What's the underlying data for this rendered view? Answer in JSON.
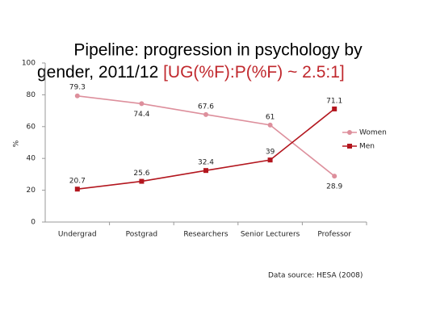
{
  "chart_data": {
    "type": "line",
    "title": "Pipeline: progression in psychology by",
    "title_line2": "gender, 2011/12 ",
    "title_highlight": "[UG(%F):P(%F) ~ 2.5:1]",
    "y_label": "%",
    "categories": [
      "Undergrad",
      "Postgrad",
      "Researchers",
      "Senior Lecturers",
      "Professor"
    ],
    "series": [
      {
        "name": "Women",
        "color": "#dd8f9c",
        "values": [
          79.3,
          74.4,
          67.6,
          61,
          28.9
        ]
      },
      {
        "name": "Men",
        "color": "#b3161e",
        "values": [
          20.7,
          25.6,
          32.4,
          39,
          71.1
        ]
      }
    ],
    "ylim": [
      0,
      100
    ],
    "yticks": [
      0,
      20,
      40,
      60,
      80,
      100
    ],
    "legend": "right",
    "source": "Data source:  HESA (2008)"
  }
}
